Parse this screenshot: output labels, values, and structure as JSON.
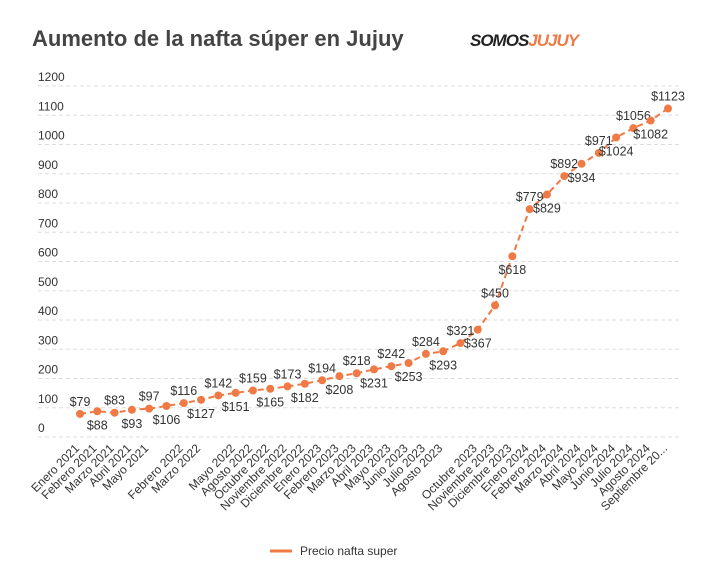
{
  "chart_data": {
    "type": "line",
    "title": "Aumento de la nafta súper en Jujuy",
    "logo": [
      "SOMOS",
      "JUJUY"
    ],
    "categories": [
      "Enero 2021",
      "Febrero 2021",
      "Marzo 2021",
      "Abril 2021",
      "Mayo 2021",
      null,
      "Febrero 2022",
      "Marzo 2022",
      null,
      "Mayo 2022",
      "Agosto 2022",
      "Octubre 2022",
      "Noviembre 2022",
      "Diciembre 2022",
      "Enero 2023",
      "Febrero 2023",
      "Marzo 2023",
      "Abril 2023",
      "Mayo 2023",
      "Junio 2023",
      "Julio 2023",
      "Agosto 2023",
      null,
      "Octubre 2023",
      "Noviembre 2023",
      "Diciembre 2023",
      "Enero 2024",
      "Febrero 2024",
      "Marzo 2024",
      "Abril 2024",
      "Mayo 2024",
      "Junio 2024",
      "Julio 2024",
      "Agosto 2024",
      "Septiembre 20..."
    ],
    "series": [
      {
        "name": "Precio nafta super",
        "color": "#ef7a45",
        "values": [
          79,
          88,
          83,
          93,
          97,
          106,
          116,
          127,
          142,
          151,
          159,
          165,
          173,
          182,
          194,
          208,
          218,
          231,
          242,
          253,
          284,
          293,
          321,
          367,
          450,
          618,
          779,
          829,
          892,
          934,
          971,
          1024,
          1056,
          1082,
          1123
        ],
        "value_labels": [
          "$79",
          "$88",
          "$83",
          "$93",
          "$97",
          "$106",
          "$116",
          "$127",
          "$142",
          "$151",
          "$159",
          "$165",
          "$173",
          "$182",
          "$194",
          "$208",
          "$218",
          "$231",
          "$242",
          "$253",
          "$284",
          "$293",
          "$321",
          "$367",
          "$450",
          "$618",
          "$779",
          "$829",
          "$892",
          "$934",
          "$971",
          "$1024",
          "$1056",
          "$1082",
          "$1123"
        ]
      }
    ],
    "ylim": [
      0,
      1200
    ],
    "yticks": [
      0,
      100,
      200,
      300,
      400,
      500,
      600,
      700,
      800,
      900,
      1000,
      1100,
      1200
    ],
    "grid": true,
    "legend": "bottom"
  }
}
